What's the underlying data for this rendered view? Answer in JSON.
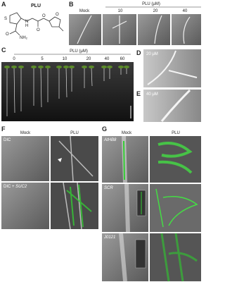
{
  "panel_a": {
    "label": "A",
    "compound": "PLU",
    "atoms": [
      "S",
      "H",
      "N",
      "O",
      "O",
      "O",
      "NH₂"
    ]
  },
  "panel_b": {
    "label": "B",
    "header": "PLU (μM)",
    "columns": [
      "Mock",
      "10",
      "20",
      "40"
    ]
  },
  "panel_c": {
    "label": "C",
    "header": "PLU (μM)",
    "columns": [
      "0",
      "5",
      "10",
      "20",
      "40",
      "60"
    ]
  },
  "panel_d": {
    "label": "D",
    "caption": "20 μM"
  },
  "panel_e": {
    "label": "E",
    "caption": "40 μM"
  },
  "panel_f": {
    "label": "F",
    "columns": [
      "Mock",
      "PLU"
    ],
    "rows": [
      "DIC",
      "DIC + ",
      "SUC2"
    ]
  },
  "panel_g": {
    "label": "G",
    "columns": [
      "Mock",
      "PLU"
    ],
    "rows": [
      "AtHB8",
      "SCR",
      "J0121"
    ]
  }
}
